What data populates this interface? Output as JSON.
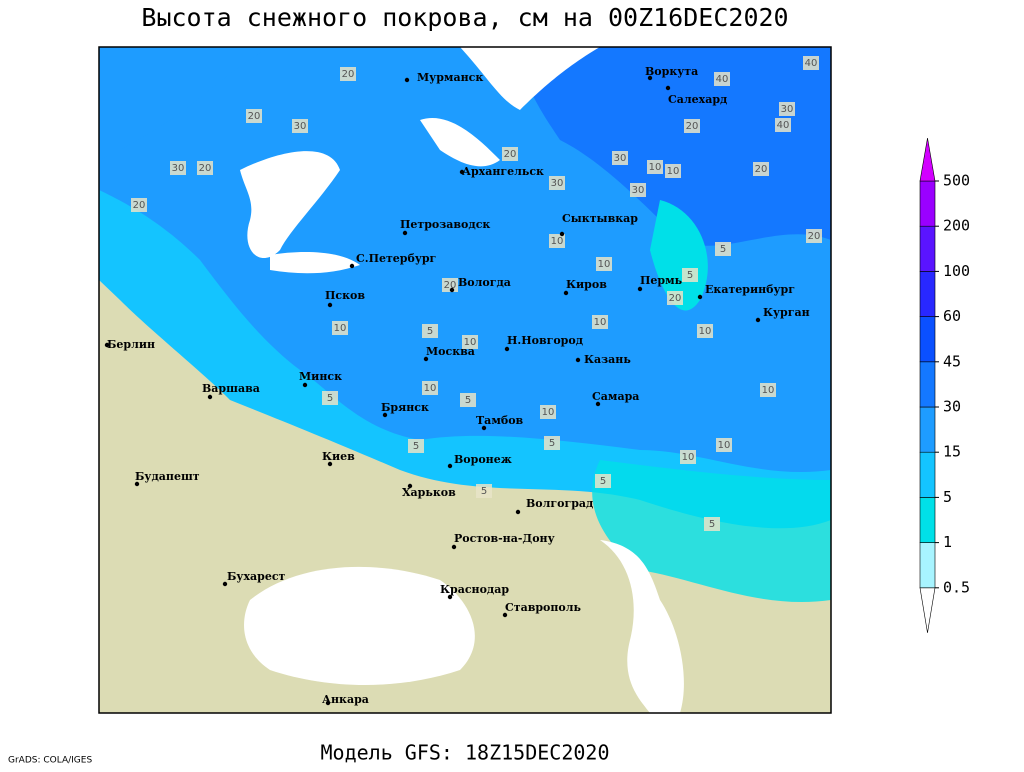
{
  "title": "Высота снежного покрова, см на 00Z16DEC2020",
  "footer": {
    "credit": "GrADS: COLA/IGES",
    "model": "Модель GFS: 18Z15DEC2020"
  },
  "cities": [
    "Мурманск",
    "Воркута",
    "Салехард",
    "Архангельск",
    "Петрозаводск",
    "Сыктывкар",
    "С.Петербург",
    "Вологда",
    "Киров",
    "Пермь",
    "Екатеринбург",
    "Курган",
    "Псков",
    "Берлин",
    "Н.Новгород",
    "Москва",
    "Казань",
    "Минск",
    "Варшава",
    "Самара",
    "Брянск",
    "Тамбов",
    "Киев",
    "Воронеж",
    "Будапешт",
    "Харьков",
    "Волгоград",
    "Ростов-на-Дону",
    "Бухарест",
    "Краснодар",
    "Ставрополь",
    "Анкара"
  ],
  "contour_labels": [
    20,
    40,
    40,
    20,
    30,
    30,
    40,
    30,
    20,
    20,
    20,
    20,
    30,
    30,
    10,
    10,
    30,
    20,
    20,
    10,
    5,
    20,
    10,
    20,
    5,
    10,
    10,
    5,
    10,
    10,
    5,
    5,
    10,
    10,
    5,
    10,
    5,
    10,
    10,
    5,
    5,
    5
  ],
  "colorbar": {
    "levels": [
      0.5,
      1,
      5,
      15,
      30,
      45,
      60,
      100,
      200,
      500
    ],
    "colors": [
      "#ffffff",
      "#a8f4ff",
      "#00e0e8",
      "#14c4ff",
      "#1e9cff",
      "#1478ff",
      "#0a50ff",
      "#2828ff",
      "#5a14ff",
      "#9a00ff",
      "#d200ff"
    ]
  }
}
